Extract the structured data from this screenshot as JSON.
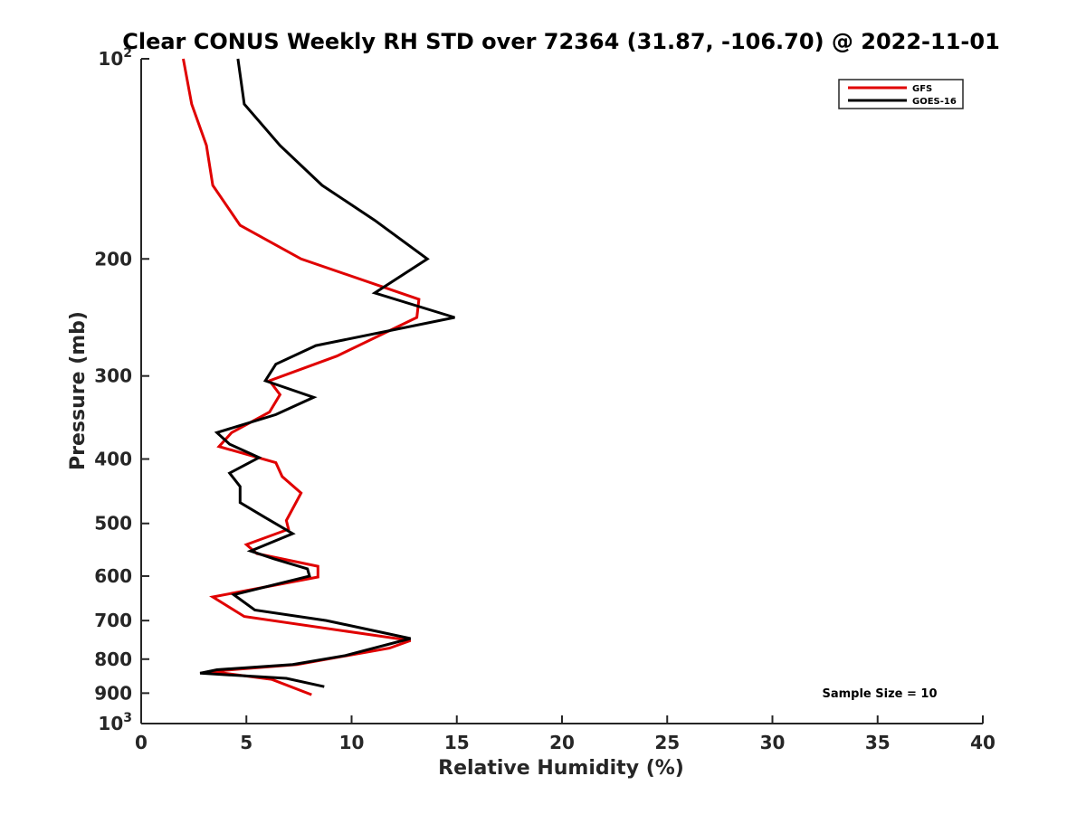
{
  "chart_data": {
    "type": "line",
    "title": "Clear CONUS Weekly RH STD over 72364 (31.87, -106.70) @ 2022-11-01",
    "xlabel": "Relative Humidity (%)",
    "ylabel": "Pressure (mb)",
    "xlim": [
      0,
      40
    ],
    "ylim": [
      100,
      1000
    ],
    "y_scale": "log",
    "y_reversed": true,
    "grid": false,
    "legend_position": "top-right",
    "annotation": "Sample Size = 10",
    "x_ticks": [
      "0",
      "5",
      "10",
      "15",
      "20",
      "25",
      "30",
      "35",
      "40"
    ],
    "y_ticks": [
      {
        "value": 100,
        "base": "10",
        "exp": "2"
      },
      {
        "value": 200,
        "label": "200"
      },
      {
        "value": 300,
        "label": "300"
      },
      {
        "value": 400,
        "label": "400"
      },
      {
        "value": 500,
        "label": "500"
      },
      {
        "value": 600,
        "label": "600"
      },
      {
        "value": 700,
        "label": "700"
      },
      {
        "value": 800,
        "label": "800"
      },
      {
        "value": 900,
        "label": "900"
      },
      {
        "value": 1000,
        "base": "10",
        "exp": "3"
      }
    ],
    "series": [
      {
        "name": "GFS",
        "color": "#e00000",
        "points": [
          [
            2.0,
            100
          ],
          [
            2.4,
            117
          ],
          [
            3.1,
            135
          ],
          [
            3.4,
            155
          ],
          [
            4.7,
            178
          ],
          [
            7.6,
            200
          ],
          [
            13.2,
            230
          ],
          [
            13.1,
            245
          ],
          [
            9.3,
            280
          ],
          [
            6.1,
            305
          ],
          [
            6.6,
            320
          ],
          [
            6.1,
            340
          ],
          [
            4.3,
            365
          ],
          [
            3.7,
            383
          ],
          [
            6.4,
            405
          ],
          [
            6.7,
            425
          ],
          [
            7.6,
            450
          ],
          [
            6.9,
            495
          ],
          [
            7.0,
            510
          ],
          [
            5.0,
            538
          ],
          [
            5.5,
            555
          ],
          [
            8.4,
            580
          ],
          [
            8.4,
            602
          ],
          [
            3.4,
            645
          ],
          [
            4.9,
            690
          ],
          [
            12.8,
            750
          ],
          [
            11.8,
            770
          ],
          [
            7.4,
            815
          ],
          [
            3.3,
            835
          ],
          [
            6.2,
            858
          ],
          [
            8.1,
            905
          ]
        ]
      },
      {
        "name": "GOES-16",
        "color": "#000000",
        "points": [
          [
            4.6,
            100
          ],
          [
            4.9,
            117
          ],
          [
            6.6,
            135
          ],
          [
            8.6,
            155
          ],
          [
            11.1,
            175
          ],
          [
            13.6,
            200
          ],
          [
            11.1,
            225
          ],
          [
            14.9,
            245
          ],
          [
            8.3,
            270
          ],
          [
            6.4,
            288
          ],
          [
            5.9,
            305
          ],
          [
            8.2,
            323
          ],
          [
            6.4,
            343
          ],
          [
            3.6,
            365
          ],
          [
            4.2,
            380
          ],
          [
            5.6,
            398
          ],
          [
            4.2,
            420
          ],
          [
            4.7,
            440
          ],
          [
            4.7,
            465
          ],
          [
            5.9,
            490
          ],
          [
            7.2,
            518
          ],
          [
            5.2,
            550
          ],
          [
            6.3,
            565
          ],
          [
            7.9,
            585
          ],
          [
            8.0,
            600
          ],
          [
            4.4,
            640
          ],
          [
            5.4,
            675
          ],
          [
            8.8,
            700
          ],
          [
            12.8,
            745
          ],
          [
            9.7,
            790
          ],
          [
            7.2,
            815
          ],
          [
            3.6,
            830
          ],
          [
            2.8,
            840
          ],
          [
            6.9,
            855
          ],
          [
            8.7,
            880
          ]
        ]
      }
    ]
  }
}
